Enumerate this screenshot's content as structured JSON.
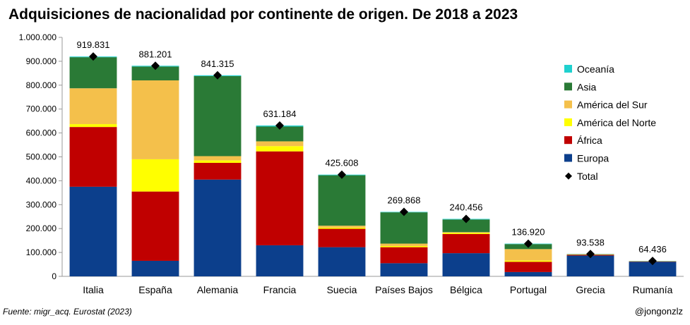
{
  "title": "Adquisiciones de nacionalidad por continente de origen. De 2018 a 2023",
  "source": "Fuente: migr_acq. Eurostat (2023)",
  "handle": "@jongonzlz",
  "colors": {
    "Oceanía": "#1fd1cf",
    "Asia": "#2a7a36",
    "América del Sur": "#f4c04b",
    "América del Norte": "#ffff00",
    "África": "#c00000",
    "Europa": "#0c3f8c",
    "Total": "#000000"
  },
  "chart_data": {
    "type": "bar",
    "stacked": true,
    "title": "Adquisiciones de nacionalidad por continente de origen. De 2018 a 2023",
    "xlabel": "",
    "ylabel": "",
    "ylim": [
      0,
      1000000
    ],
    "yticks": [
      "0",
      "100.000",
      "200.000",
      "300.000",
      "400.000",
      "500.000",
      "600.000",
      "700.000",
      "800.000",
      "900.000",
      "1.000.000"
    ],
    "grid": false,
    "legend_position": "right",
    "categories": [
      "Italia",
      "España",
      "Alemania",
      "Francia",
      "Suecia",
      "Países Bajos",
      "Bélgica",
      "Portugal",
      "Grecia",
      "Rumanía"
    ],
    "series": [
      {
        "name": "Europa",
        "values": [
          375000,
          65000,
          405000,
          130000,
          122000,
          55000,
          97000,
          18000,
          87000,
          61000
        ]
      },
      {
        "name": "África",
        "values": [
          250000,
          290000,
          70000,
          393000,
          77000,
          67000,
          80000,
          43000,
          3000,
          1000
        ]
      },
      {
        "name": "América del Norte",
        "values": [
          12000,
          135000,
          10000,
          22000,
          5000,
          5000,
          5000,
          5000,
          1000,
          500
        ]
      },
      {
        "name": "América del Sur",
        "values": [
          150000,
          330000,
          18000,
          20000,
          8000,
          10000,
          3000,
          48000,
          1000,
          500
        ]
      },
      {
        "name": "Asia",
        "values": [
          130000,
          58000,
          335000,
          62000,
          211000,
          131000,
          53000,
          21000,
          1000,
          1000
        ]
      },
      {
        "name": "Oceanía",
        "values": [
          2831,
          3201,
          3315,
          4184,
          2608,
          1868,
          2456,
          1920,
          538,
          436
        ]
      }
    ],
    "totals": {
      "name": "Total",
      "values": [
        919831,
        881201,
        841315,
        631184,
        425608,
        269868,
        240456,
        136920,
        93538,
        64436
      ],
      "labels": [
        "919.831",
        "881.201",
        "841.315",
        "631.184",
        "425.608",
        "269.868",
        "240.456",
        "136.920",
        "93.538",
        "64.436"
      ]
    },
    "legend": [
      "Oceanía",
      "Asia",
      "América del Sur",
      "América del Norte",
      "África",
      "Europa",
      "Total"
    ]
  }
}
